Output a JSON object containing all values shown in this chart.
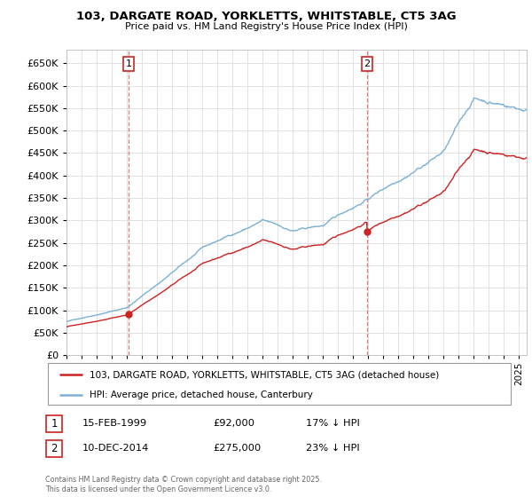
{
  "title_line1": "103, DARGATE ROAD, YORKLETTS, WHITSTABLE, CT5 3AG",
  "title_line2": "Price paid vs. HM Land Registry's House Price Index (HPI)",
  "background_color": "#ffffff",
  "grid_color": "#dddddd",
  "hpi_line_color": "#7ab0d4",
  "price_line_color": "#cc2222",
  "vline_color": "#dd6666",
  "ylim_min": 0,
  "ylim_max": 680000,
  "yticks": [
    0,
    50000,
    100000,
    150000,
    200000,
    250000,
    300000,
    350000,
    400000,
    450000,
    500000,
    550000,
    600000,
    650000
  ],
  "sale1_year": 1999.12,
  "sale1_price": 92000,
  "sale1_label": "1",
  "sale2_year": 2014.92,
  "sale2_price": 275000,
  "sale2_label": "2",
  "legend_property": "103, DARGATE ROAD, YORKLETTS, WHITSTABLE, CT5 3AG (detached house)",
  "legend_hpi": "HPI: Average price, detached house, Canterbury",
  "annotation1_date": "15-FEB-1999",
  "annotation1_price": "£92,000",
  "annotation1_hpi": "17% ↓ HPI",
  "annotation2_date": "10-DEC-2014",
  "annotation2_price": "£275,000",
  "annotation2_hpi": "23% ↓ HPI",
  "copyright_text": "Contains HM Land Registry data © Crown copyright and database right 2025.\nThis data is licensed under the Open Government Licence v3.0.",
  "xmin": 1995,
  "xmax": 2025.5
}
